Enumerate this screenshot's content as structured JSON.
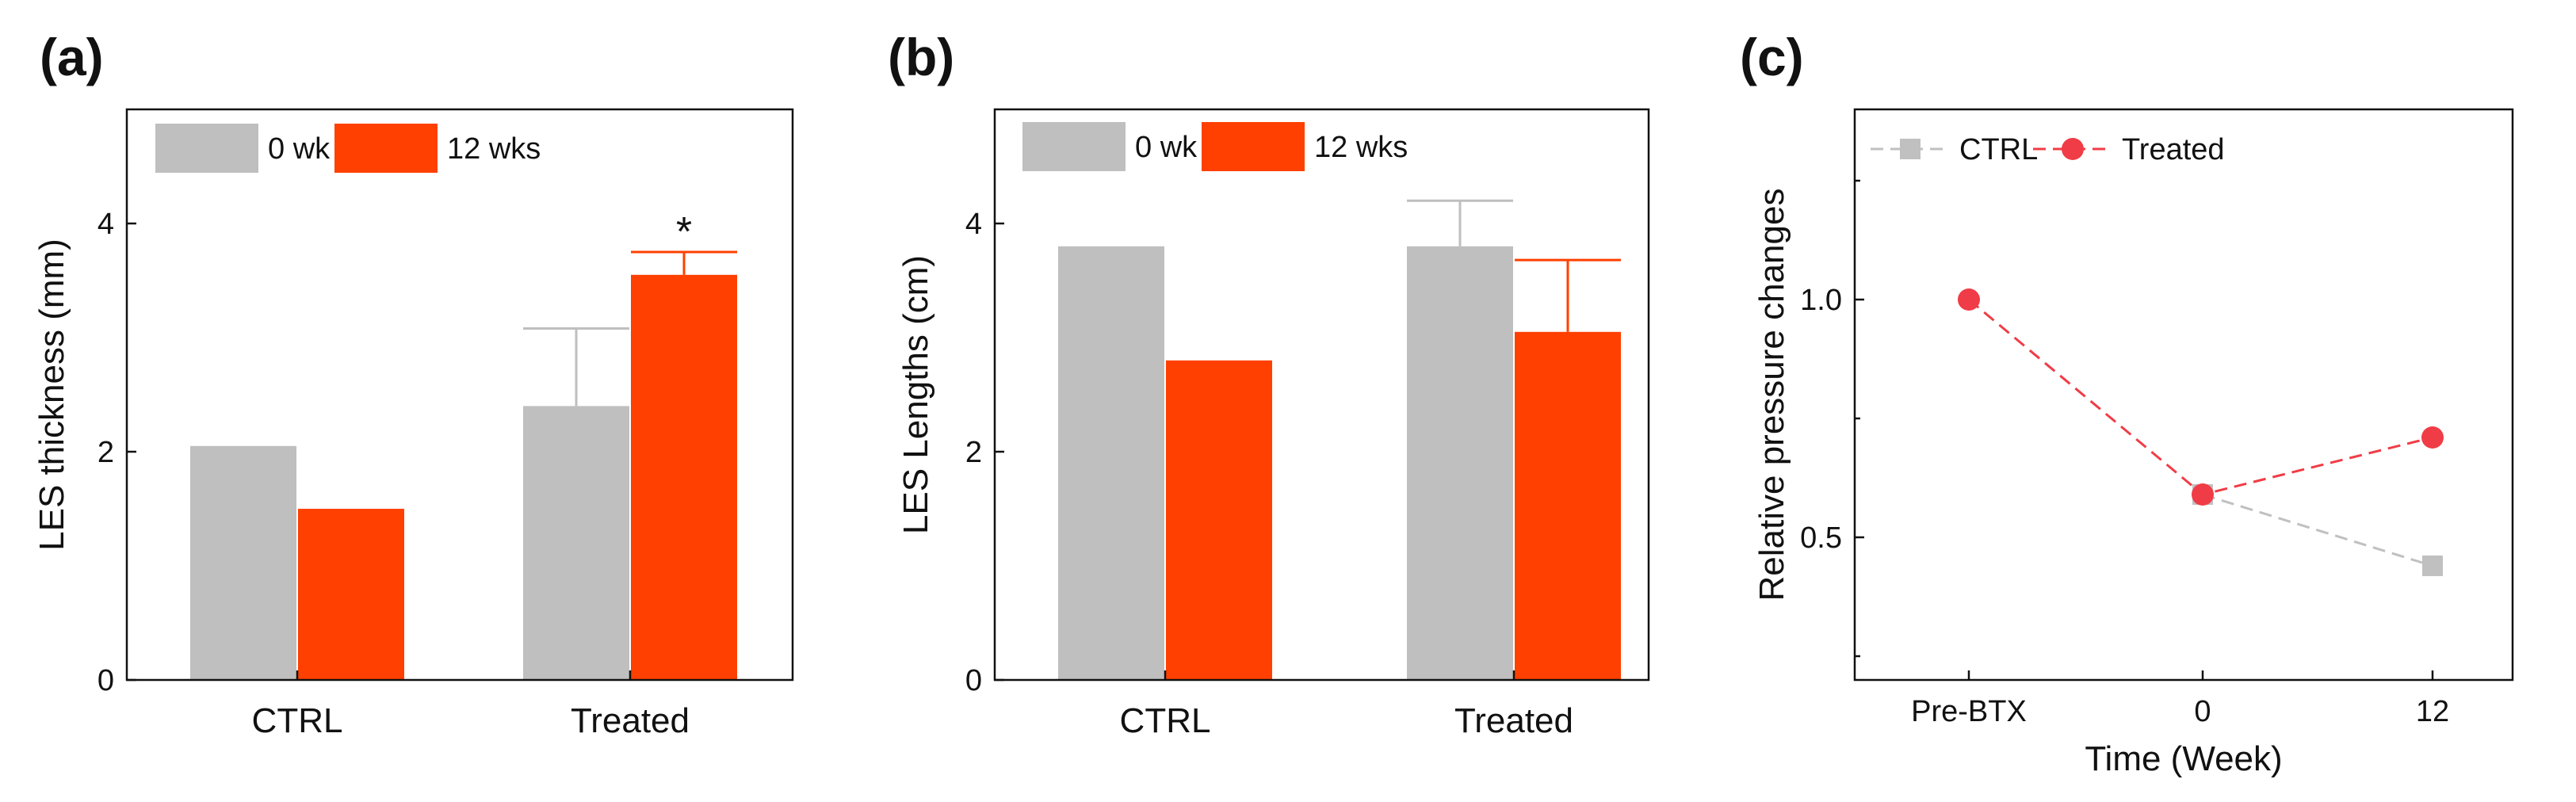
{
  "panels": [
    {
      "label": "(a)"
    },
    {
      "label": "(b)"
    },
    {
      "label": "(c)"
    }
  ],
  "chart_data": [
    {
      "type": "bar",
      "title": "",
      "xlabel": "",
      "ylabel": "LES thickness (mm)",
      "ylim": [
        0,
        5
      ],
      "yticks": [
        0,
        2,
        4
      ],
      "categories": [
        "CTRL",
        "Treated"
      ],
      "series": [
        {
          "name": "0 wk",
          "color": "#bfbfbf",
          "values": [
            2.05,
            2.4
          ],
          "errors": [
            null,
            0.68
          ]
        },
        {
          "name": "12 wks",
          "color": "#ff4000",
          "values": [
            1.5,
            3.55
          ],
          "errors": [
            null,
            0.2
          ]
        }
      ],
      "annotations": [
        {
          "text": "*",
          "category": "Treated",
          "series": "12 wks"
        }
      ],
      "legend": "top-left"
    },
    {
      "type": "bar",
      "title": "",
      "xlabel": "",
      "ylabel": "LES Lengths (cm)",
      "ylim": [
        0,
        5
      ],
      "yticks": [
        0,
        2,
        4
      ],
      "categories": [
        "CTRL",
        "Treated"
      ],
      "series": [
        {
          "name": "0 wk",
          "color": "#bfbfbf",
          "values": [
            3.8,
            3.8
          ],
          "errors": [
            null,
            0.4
          ]
        },
        {
          "name": "12 wks",
          "color": "#ff4000",
          "values": [
            2.8,
            3.05
          ],
          "errors": [
            null,
            0.63
          ]
        }
      ],
      "legend": "top-left"
    },
    {
      "type": "line",
      "title": "",
      "xlabel": "Time (Week)",
      "ylabel": "Relative pressure changes",
      "ylim": [
        0.2,
        1.4
      ],
      "yticks": [
        0.5,
        1.0
      ],
      "yticklabels": [
        "0.5",
        "1.0"
      ],
      "categories": [
        "Pre-BTX",
        "0",
        "12"
      ],
      "series": [
        {
          "name": "CTRL",
          "color": "#c0c0c0",
          "marker": "square",
          "values": [
            null,
            0.59,
            0.44
          ]
        },
        {
          "name": "Treated",
          "color": "#f03c46",
          "marker": "circle",
          "values": [
            1.0,
            0.59,
            0.71
          ]
        }
      ],
      "legend": "top-left"
    }
  ]
}
